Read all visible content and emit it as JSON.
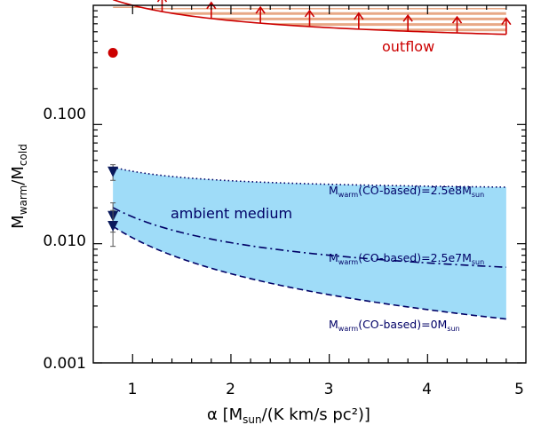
{
  "chart_data": {
    "type": "line",
    "xlabel": {
      "main": "α [M",
      "sub": "sun",
      "rest": "/(K km/s pc²)]"
    },
    "ylabel": {
      "main": "M",
      "sub1": "warm",
      "slash": "/M",
      "sub2": "cold"
    },
    "xlim": [
      0.6,
      5.0
    ],
    "ylim": [
      0.001,
      1.0
    ],
    "yscale": "log",
    "x_ticks": [
      1,
      2,
      3,
      4,
      5
    ],
    "x_tick_labels": [
      "1",
      "2",
      "3",
      "4",
      "5"
    ],
    "y_ticks": [
      0.001,
      0.01,
      0.1
    ],
    "y_tick_labels": [
      "0.001",
      "0.010",
      "0.100"
    ],
    "curves": {
      "outflow": {
        "a": 0.4,
        "b": 0.6,
        "p": 0.8,
        "x_range": [
          0.8,
          4.8
        ],
        "style": "solid",
        "color": "#cc0000"
      },
      "co_2_5e8": {
        "a": 0.027,
        "b": 0.0135,
        "p": 1.0,
        "x_range": [
          0.8,
          4.8
        ],
        "style": "dotted",
        "color": "#000066"
      },
      "co_2_5e7": {
        "a": 0.0036,
        "b": 0.0132,
        "p": 1.0,
        "x_range": [
          0.8,
          4.8
        ],
        "style": "dashdot",
        "color": "#000066"
      },
      "co_0": {
        "a": 0.0,
        "b": 0.0112,
        "p": 1.0,
        "x_range": [
          0.8,
          4.8
        ],
        "style": "dashed",
        "color": "#000066"
      }
    },
    "outflow_point": {
      "x": 0.8,
      "y": 0.4
    },
    "outflow_arrows_x": [
      0.8,
      1.3,
      1.8,
      2.3,
      2.8,
      3.3,
      3.8,
      4.3,
      4.8
    ],
    "ambient_points": [
      {
        "x": 0.8,
        "y": 0.04,
        "err_low": 0.034,
        "err_high": 0.046
      },
      {
        "x": 0.8,
        "y": 0.017,
        "err_low": 0.0125,
        "err_high": 0.022
      },
      {
        "x": 0.8,
        "y": 0.014,
        "err_low": 0.0095,
        "err_high": 0.019
      }
    ],
    "regions": [
      {
        "name": "outflow",
        "fill": "hatched",
        "color": "#e8a886"
      },
      {
        "name": "ambient medium",
        "fill": "solid",
        "color": "#9fdcf8"
      }
    ],
    "annotations": {
      "outflow": "outflow",
      "ambient": "ambient medium",
      "label_2_5e8": {
        "m": "M",
        "sub": "warm",
        "mid": "(CO-based)=2.5e8M",
        "sub2": "sun"
      },
      "label_2_5e7": {
        "m": "M",
        "sub": "warm",
        "mid": "(CO-based)=2.5e7M",
        "sub2": "sun"
      },
      "label_0": {
        "m": "M",
        "sub": "warm",
        "mid": "(CO-based)=0M",
        "sub2": "sun"
      }
    },
    "colors": {
      "outflow": "#cc0000",
      "ambient_text": "#000066",
      "hatch": "#e8a886",
      "ambient_fill": "#9fdcf8",
      "marker": "#0a1a5c"
    }
  }
}
